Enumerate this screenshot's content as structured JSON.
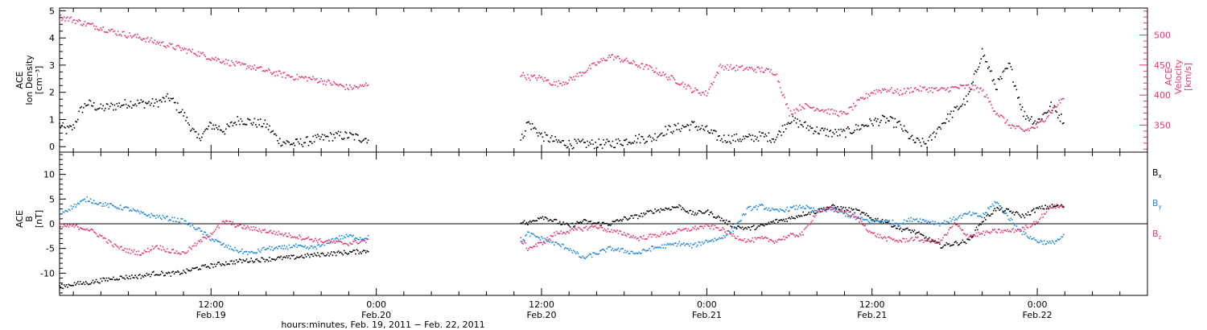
{
  "chart_data": [
    {
      "type": "scatter",
      "panel": "top",
      "ylabel": [
        "ACE",
        "Ion Density",
        "[cm⁻³]"
      ],
      "ylabel_right": [
        "ACE",
        "Velocity",
        "[km/s]"
      ],
      "ylim": [
        -0.2,
        5.1
      ],
      "ylim_right": [
        305,
        545
      ],
      "yticks": [
        0,
        1,
        2,
        3,
        4,
        5
      ],
      "yticks_right": [
        350,
        400,
        450,
        500
      ],
      "colors": {
        "density": "#000000",
        "velocity": "#e8336b"
      },
      "series": [
        {
          "color": "#000000",
          "x": [
            0.0,
            0.5,
            1.0,
            1.5,
            2.0,
            2.5,
            3.0,
            4.0,
            5.0,
            6.0,
            7.0,
            8.0,
            9.0,
            10.0,
            10.5,
            11.0,
            12.0,
            13.0,
            14.0,
            15.0,
            16.0,
            17.0,
            18.0,
            19.0,
            20.0,
            21.0,
            22.0,
            22.5,
            33.5,
            34.0,
            35.0,
            36.0,
            37.0,
            38.0,
            39.0,
            40.0,
            41.0,
            42.0,
            43.0,
            44.0,
            45.0,
            46.0,
            47.0,
            48.0,
            49.0,
            50.0,
            51.0,
            52.0,
            53.0,
            54.0,
            55.0,
            56.0,
            57.0,
            58.0,
            59.0,
            60.0,
            61.0,
            62.0,
            63.0,
            64.0,
            65.0,
            66.0,
            67.0,
            68.0,
            69.0,
            70.0,
            71.0,
            72.0,
            73.0
          ],
          "y": [
            0.8,
            0.6,
            0.7,
            1.3,
            1.6,
            1.5,
            1.4,
            1.5,
            1.6,
            1.6,
            1.6,
            1.8,
            1.2,
            0.3,
            0.5,
            0.8,
            0.6,
            1.0,
            0.9,
            0.8,
            0.2,
            0.1,
            0.2,
            0.3,
            0.4,
            0.4,
            0.3,
            0.3,
            0.2,
            0.9,
            0.4,
            0.2,
            0.1,
            0.1,
            0.1,
            0.1,
            0.2,
            0.3,
            0.3,
            0.6,
            0.7,
            0.8,
            0.6,
            0.3,
            0.3,
            0.3,
            0.4,
            0.3,
            1.0,
            0.8,
            0.6,
            0.5,
            0.5,
            0.7,
            0.9,
            1.0,
            0.8,
            0.2,
            0.1,
            0.8,
            1.3,
            1.8,
            3.5,
            2.2,
            3.0,
            1.2,
            0.9,
            1.5,
            0.9
          ]
        },
        {
          "color": "#e8336b",
          "x": [
            0.0,
            1.0,
            2.0,
            3.0,
            4.0,
            5.0,
            6.0,
            7.0,
            8.0,
            9.0,
            10.0,
            11.0,
            12.0,
            13.0,
            14.0,
            15.0,
            16.0,
            17.0,
            18.0,
            19.0,
            20.0,
            21.0,
            22.0,
            22.5,
            33.5,
            34.0,
            35.0,
            36.0,
            37.0,
            38.0,
            39.0,
            40.0,
            41.0,
            42.0,
            43.0,
            44.0,
            45.0,
            46.0,
            47.0,
            48.0,
            49.0,
            50.0,
            51.0,
            52.0,
            53.0,
            54.0,
            55.0,
            56.0,
            57.0,
            58.0,
            59.0,
            60.0,
            61.0,
            62.0,
            63.0,
            64.0,
            65.0,
            66.0,
            67.0,
            68.0,
            69.0,
            70.0,
            71.0,
            72.0,
            73.0
          ],
          "y": [
            530,
            525,
            518,
            512,
            505,
            500,
            495,
            488,
            482,
            476,
            470,
            462,
            456,
            450,
            447,
            440,
            435,
            430,
            428,
            424,
            418,
            412,
            414,
            420,
            435,
            430,
            428,
            418,
            424,
            438,
            452,
            465,
            458,
            450,
            444,
            432,
            422,
            408,
            402,
            448,
            445,
            444,
            442,
            438,
            370,
            382,
            378,
            372,
            368,
            388,
            405,
            410,
            404,
            410,
            410,
            408,
            412,
            414,
            408,
            372,
            350,
            340,
            348,
            372,
            398
          ]
        }
      ]
    },
    {
      "type": "scatter",
      "panel": "bottom",
      "ylabel": [
        "ACE",
        "B",
        "[nT]"
      ],
      "ylim": [
        -14.5,
        14.5
      ],
      "yticks": [
        -10,
        -5,
        0,
        5,
        10
      ],
      "zero_line": true,
      "colors": {
        "Bx": "#000000",
        "By": "#1a86e0",
        "Bz": "#e8336b"
      },
      "legend": [
        {
          "base": "B",
          "sub": "x",
          "color": "#000000"
        },
        {
          "base": "B",
          "sub": "y",
          "color": "#1a86e0"
        },
        {
          "base": "B",
          "sub": "z",
          "color": "#e8336b"
        }
      ],
      "series": [
        {
          "name": "Bx",
          "color": "#000000",
          "x": [
            0.0,
            1.0,
            2.0,
            3.0,
            4.0,
            5.0,
            6.0,
            7.0,
            8.0,
            9.0,
            10.0,
            11.0,
            12.0,
            13.0,
            14.0,
            15.0,
            16.0,
            17.0,
            18.0,
            19.0,
            20.0,
            21.0,
            22.0,
            22.5,
            33.5,
            34.0,
            35.0,
            36.0,
            37.0,
            38.0,
            39.0,
            40.0,
            41.0,
            42.0,
            43.0,
            44.0,
            45.0,
            46.0,
            47.0,
            48.0,
            49.0,
            50.0,
            51.0,
            52.0,
            53.0,
            54.0,
            55.0,
            56.0,
            57.0,
            58.0,
            59.0,
            60.0,
            61.0,
            62.0,
            63.0,
            64.0,
            65.0,
            66.0,
            67.0,
            68.0,
            69.0,
            70.0,
            71.0,
            72.0,
            73.0
          ],
          "y": [
            -12.8,
            -12.2,
            -12.0,
            -11.5,
            -11.0,
            -10.8,
            -10.6,
            -10.0,
            -10.2,
            -9.8,
            -9.0,
            -8.5,
            -8.0,
            -7.6,
            -7.4,
            -7.2,
            -7.0,
            -6.8,
            -6.5,
            -6.2,
            -6.0,
            -5.8,
            -5.6,
            -5.5,
            0.5,
            0.0,
            1.5,
            0.5,
            -0.5,
            0.5,
            0.0,
            0.0,
            1.0,
            1.5,
            2.5,
            3.0,
            3.5,
            2.0,
            2.5,
            1.0,
            -0.5,
            -1.0,
            -0.5,
            0.5,
            1.0,
            2.0,
            2.5,
            3.5,
            3.0,
            2.5,
            1.0,
            0.5,
            -1.0,
            -1.5,
            -3.0,
            -4.5,
            -4.0,
            -3.5,
            0.5,
            3.0,
            2.5,
            1.5,
            3.0,
            3.5,
            3.5
          ]
        },
        {
          "name": "By",
          "color": "#1a86e0",
          "x": [
            0.0,
            1.0,
            2.0,
            3.0,
            4.0,
            5.0,
            6.0,
            7.0,
            8.0,
            9.0,
            10.0,
            11.0,
            12.0,
            13.0,
            14.0,
            15.0,
            16.0,
            17.0,
            18.0,
            19.0,
            20.0,
            21.0,
            22.0,
            22.5,
            33.5,
            34.0,
            35.0,
            36.0,
            37.0,
            38.0,
            39.0,
            40.0,
            41.0,
            42.0,
            43.0,
            44.0,
            45.0,
            46.0,
            47.0,
            48.0,
            49.0,
            50.0,
            51.0,
            52.0,
            53.0,
            54.0,
            55.0,
            56.0,
            57.0,
            58.0,
            59.0,
            60.0,
            61.0,
            62.0,
            63.0,
            64.0,
            65.0,
            66.0,
            67.0,
            68.0,
            69.0,
            70.0,
            71.0,
            72.0,
            73.0
          ],
          "y": [
            2.0,
            3.5,
            5.0,
            4.0,
            3.5,
            3.0,
            2.0,
            1.5,
            1.0,
            0.5,
            -1.0,
            -3.0,
            -4.5,
            -5.5,
            -6.0,
            -5.0,
            -5.0,
            -4.5,
            -5.0,
            -4.5,
            -3.0,
            -2.5,
            -3.0,
            -2.5,
            -4.0,
            -2.0,
            -3.0,
            -4.0,
            -5.0,
            -7.0,
            -6.0,
            -5.0,
            -5.5,
            -6.0,
            -5.0,
            -4.5,
            -4.0,
            -4.5,
            -3.5,
            -3.0,
            -1.0,
            3.0,
            3.5,
            2.5,
            3.0,
            3.5,
            2.5,
            3.0,
            2.0,
            1.0,
            0.5,
            0.5,
            0.0,
            1.0,
            0.5,
            0.0,
            1.0,
            2.0,
            1.5,
            4.5,
            1.0,
            -2.0,
            -3.5,
            -4.0,
            -2.5
          ]
        },
        {
          "name": "Bz",
          "color": "#e8336b",
          "x": [
            0.0,
            1.0,
            2.0,
            3.0,
            4.0,
            5.0,
            6.0,
            7.0,
            8.0,
            9.0,
            10.0,
            11.0,
            12.0,
            13.0,
            14.0,
            15.0,
            16.0,
            17.0,
            18.0,
            19.0,
            20.0,
            21.0,
            22.0,
            22.5,
            33.5,
            34.0,
            35.0,
            36.0,
            37.0,
            38.0,
            39.0,
            40.0,
            41.0,
            42.0,
            43.0,
            44.0,
            45.0,
            46.0,
            47.0,
            48.0,
            49.0,
            50.0,
            51.0,
            52.0,
            53.0,
            54.0,
            55.0,
            56.0,
            57.0,
            58.0,
            59.0,
            60.0,
            61.0,
            62.0,
            63.0,
            64.0,
            65.0,
            66.0,
            67.0,
            68.0,
            69.0,
            70.0,
            71.0,
            72.0,
            73.0
          ],
          "y": [
            -0.5,
            -0.5,
            -1.0,
            -2.5,
            -4.5,
            -5.5,
            -6.0,
            -4.5,
            -5.5,
            -6.0,
            -4.0,
            -2.0,
            0.5,
            -0.5,
            -1.0,
            -1.5,
            -2.0,
            -2.5,
            -3.0,
            -3.5,
            -3.8,
            -4.0,
            -3.5,
            -3.5,
            -3.0,
            -5.0,
            -4.0,
            -2.0,
            -1.5,
            -1.0,
            -0.5,
            -1.5,
            -2.0,
            -3.0,
            -2.5,
            -2.0,
            -1.5,
            -1.0,
            -0.5,
            -1.0,
            -2.5,
            -3.5,
            -3.0,
            -3.5,
            -2.5,
            -2.0,
            2.5,
            3.0,
            2.5,
            1.0,
            -2.0,
            -3.0,
            -3.5,
            -3.0,
            -3.5,
            -3.5,
            0.0,
            -2.5,
            -2.0,
            -1.5,
            -1.5,
            -1.0,
            0.5,
            3.5,
            3.5
          ]
        }
      ]
    }
  ],
  "x_axis": {
    "xlim": [
      0,
      79
    ],
    "major_ticks": [
      {
        "x": 11,
        "time": "12:00",
        "date": "Feb.19"
      },
      {
        "x": 23,
        "time": "0:00",
        "date": "Feb.20"
      },
      {
        "x": 35,
        "time": "12:00",
        "date": "Feb.20"
      },
      {
        "x": 47,
        "time": "0:00",
        "date": "Feb.21"
      },
      {
        "x": 59,
        "time": "12:00",
        "date": "Feb.21"
      },
      {
        "x": 71,
        "time": "0:00",
        "date": "Feb.22"
      }
    ],
    "minor_tick_step": 2,
    "xlabel": "hours:minutes, Feb. 19, 2011 − Feb. 22, 2011"
  }
}
